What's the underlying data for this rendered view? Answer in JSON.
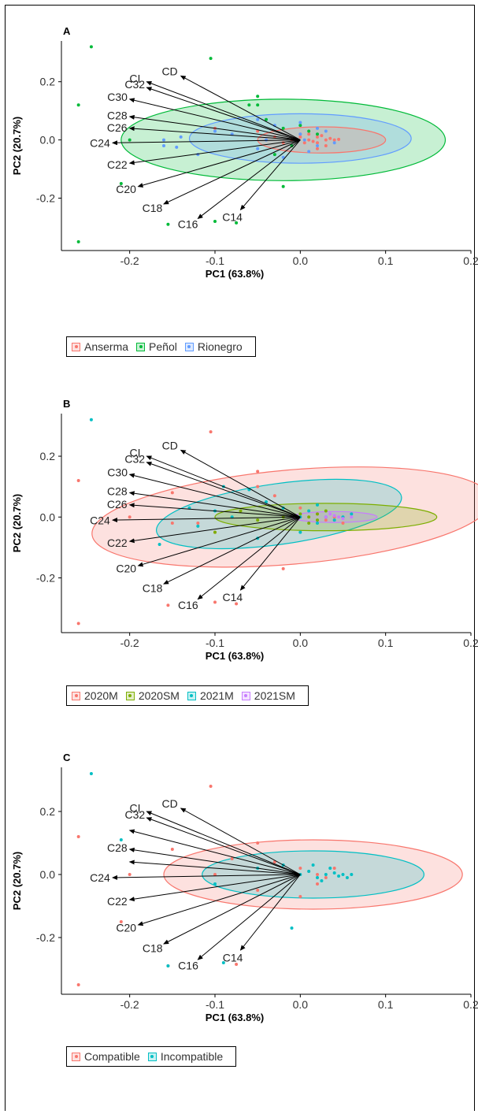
{
  "chart_data": [
    {
      "type": "scatter",
      "panel_label": "A",
      "xlabel": "PC1 (63.8%)",
      "ylabel": "PC2 (20.7%)",
      "xlim": [
        -0.28,
        0.2
      ],
      "ylim": [
        -0.38,
        0.34
      ],
      "xticks": [
        -0.2,
        -0.1,
        0.0,
        0.1,
        0.2
      ],
      "xtick_labels": [
        "-0.2",
        "-0.1",
        "0.0",
        "0.1",
        "0.2"
      ],
      "yticks": [
        -0.2,
        0.0,
        0.2
      ],
      "ytick_labels": [
        "-0.2",
        "0.0",
        "0.2"
      ],
      "grid": false,
      "legend_position": "bottom",
      "series": [
        {
          "name": "Anserma",
          "color": "#F8766D",
          "ellipse": {
            "cx": 0.025,
            "cy": 0.0,
            "rx": 0.075,
            "ry": 0.045,
            "angle": 0
          },
          "points": [
            [
              0.0,
              0.01
            ],
            [
              0.01,
              0.0
            ],
            [
              0.02,
              0.01
            ],
            [
              0.03,
              0.0
            ],
            [
              0.04,
              0.0
            ],
            [
              0.02,
              -0.01
            ],
            [
              0.03,
              -0.02
            ],
            [
              0.01,
              0.02
            ],
            [
              0.035,
              0.005
            ],
            [
              0.005,
              -0.01
            ],
            [
              0.025,
              0.015
            ],
            [
              -0.01,
              0.0
            ],
            [
              -0.03,
              0.01
            ],
            [
              -0.05,
              0.03
            ],
            [
              -0.1,
              0.04
            ],
            [
              0.015,
              -0.005
            ],
            [
              0.045,
              0.002
            ],
            [
              -0.02,
              -0.01
            ],
            [
              0.0,
              0.02
            ],
            [
              0.02,
              -0.03
            ]
          ]
        },
        {
          "name": "Peñol",
          "color": "#00BA38",
          "ellipse": {
            "cx": -0.02,
            "cy": 0.0,
            "rx": 0.19,
            "ry": 0.14,
            "angle": 0
          },
          "points": [
            [
              -0.245,
              0.32
            ],
            [
              -0.26,
              0.12
            ],
            [
              -0.26,
              -0.35
            ],
            [
              -0.105,
              0.28
            ],
            [
              -0.155,
              -0.29
            ],
            [
              -0.1,
              -0.28
            ],
            [
              -0.075,
              -0.285
            ],
            [
              -0.2,
              0.0
            ],
            [
              -0.21,
              -0.15
            ],
            [
              -0.05,
              0.15
            ],
            [
              -0.05,
              0.12
            ],
            [
              -0.04,
              0.07
            ],
            [
              -0.02,
              0.04
            ],
            [
              0.0,
              0.05
            ],
            [
              0.01,
              0.03
            ],
            [
              -0.01,
              -0.02
            ],
            [
              -0.03,
              -0.05
            ],
            [
              -0.02,
              -0.16
            ],
            [
              -0.06,
              0.12
            ],
            [
              0.02,
              0.02
            ]
          ]
        },
        {
          "name": "Rionegro",
          "color": "#619CFF",
          "ellipse": {
            "cx": 0.0,
            "cy": 0.005,
            "rx": 0.13,
            "ry": 0.085,
            "angle": 0
          },
          "points": [
            [
              -0.16,
              -0.02
            ],
            [
              -0.16,
              0.0
            ],
            [
              -0.145,
              -0.025
            ],
            [
              -0.14,
              0.01
            ],
            [
              -0.1,
              0.03
            ],
            [
              -0.12,
              -0.05
            ],
            [
              -0.05,
              0.07
            ],
            [
              -0.05,
              -0.03
            ],
            [
              -0.03,
              0.05
            ],
            [
              0.0,
              0.06
            ],
            [
              0.0,
              0.02
            ],
            [
              0.02,
              -0.02
            ],
            [
              0.01,
              -0.04
            ],
            [
              0.03,
              0.03
            ],
            [
              -0.02,
              -0.06
            ],
            [
              -0.08,
              0.02
            ],
            [
              -0.04,
              0.0
            ],
            [
              0.02,
              0.04
            ],
            [
              0.04,
              -0.01
            ],
            [
              0.005,
              0.0
            ]
          ]
        }
      ],
      "arrows": [
        {
          "label": "CD",
          "x": -0.14,
          "y": 0.22
        },
        {
          "label": "CI",
          "x": -0.18,
          "y": 0.2
        },
        {
          "label": "C32",
          "x": -0.18,
          "y": 0.18
        },
        {
          "label": "C30",
          "x": -0.2,
          "y": 0.14
        },
        {
          "label": "C28",
          "x": -0.2,
          "y": 0.08
        },
        {
          "label": "C26",
          "x": -0.2,
          "y": 0.04
        },
        {
          "label": "C24",
          "x": -0.22,
          "y": -0.01
        },
        {
          "label": "C22",
          "x": -0.2,
          "y": -0.08
        },
        {
          "label": "C20",
          "x": -0.19,
          "y": -0.16
        },
        {
          "label": "C18",
          "x": -0.16,
          "y": -0.22
        },
        {
          "label": "C16",
          "x": -0.12,
          "y": -0.27
        },
        {
          "label": "C14",
          "x": -0.07,
          "y": -0.24
        }
      ],
      "arrow_origin": {
        "x": 0.0,
        "y": 0.0
      }
    },
    {
      "type": "scatter",
      "panel_label": "B",
      "xlabel": "PC1 (63.8%)",
      "ylabel": "PC2 (20.7%)",
      "xlim": [
        -0.28,
        0.2
      ],
      "ylim": [
        -0.38,
        0.34
      ],
      "xticks": [
        -0.2,
        -0.1,
        0.0,
        0.1,
        0.2
      ],
      "xtick_labels": [
        "-0.2",
        "-0.1",
        "0.0",
        "0.1",
        "0.2"
      ],
      "yticks": [
        -0.2,
        0.0,
        0.2
      ],
      "ytick_labels": [
        "-0.2",
        "0.0",
        "0.2"
      ],
      "grid": false,
      "legend_position": "bottom",
      "series": [
        {
          "name": "2020M",
          "color": "#F8766D",
          "ellipse": {
            "cx": -0.01,
            "cy": 0.0,
            "rx": 0.235,
            "ry": 0.155,
            "angle": -5
          },
          "points": [
            [
              -0.26,
              0.12
            ],
            [
              -0.26,
              -0.35
            ],
            [
              -0.105,
              0.28
            ],
            [
              -0.155,
              -0.29
            ],
            [
              -0.1,
              -0.28
            ],
            [
              -0.075,
              -0.285
            ],
            [
              -0.15,
              0.08
            ],
            [
              -0.2,
              0.0
            ],
            [
              -0.15,
              -0.02
            ],
            [
              -0.1,
              -0.05
            ],
            [
              -0.05,
              0.15
            ],
            [
              -0.05,
              0.1
            ],
            [
              -0.03,
              0.07
            ],
            [
              0.0,
              0.03
            ],
            [
              0.02,
              0.01
            ],
            [
              0.03,
              -0.01
            ],
            [
              0.04,
              0.0
            ],
            [
              0.05,
              -0.02
            ],
            [
              -0.02,
              -0.17
            ],
            [
              -0.12,
              -0.02
            ]
          ]
        },
        {
          "name": "2020SM",
          "color": "#7CAE00",
          "ellipse": {
            "cx": 0.03,
            "cy": 0.0,
            "rx": 0.13,
            "ry": 0.045,
            "angle": 0
          },
          "points": [
            [
              0.0,
              0.01
            ],
            [
              0.01,
              0.0
            ],
            [
              0.02,
              -0.01
            ],
            [
              0.03,
              0.02
            ],
            [
              0.02,
              0.01
            ],
            [
              -0.02,
              0.0
            ],
            [
              -0.05,
              -0.01
            ],
            [
              -0.1,
              -0.05
            ],
            [
              -0.07,
              0.02
            ],
            [
              0.01,
              -0.02
            ]
          ]
        },
        {
          "name": "2021M",
          "color": "#00BFC4",
          "ellipse": {
            "cx": -0.025,
            "cy": 0.01,
            "rx": 0.145,
            "ry": 0.1,
            "angle": -8
          },
          "points": [
            [
              -0.245,
              0.32
            ],
            [
              -0.165,
              -0.09
            ],
            [
              -0.13,
              0.03
            ],
            [
              -0.12,
              -0.03
            ],
            [
              -0.08,
              0.0
            ],
            [
              -0.04,
              0.05
            ],
            [
              -0.02,
              0.03
            ],
            [
              0.0,
              0.0
            ],
            [
              0.01,
              0.02
            ],
            [
              0.02,
              -0.02
            ],
            [
              0.03,
              0.0
            ],
            [
              0.04,
              -0.01
            ],
            [
              0.05,
              0.0
            ],
            [
              0.06,
              0.01
            ],
            [
              -0.1,
              0.02
            ],
            [
              -0.05,
              -0.07
            ],
            [
              0.0,
              -0.05
            ],
            [
              -0.09,
              0.1
            ],
            [
              -0.06,
              0.09
            ],
            [
              0.02,
              0.04
            ]
          ]
        },
        {
          "name": "2021SM",
          "color": "#C77CFF",
          "ellipse": {
            "cx": 0.04,
            "cy": 0.0,
            "rx": 0.05,
            "ry": 0.018,
            "angle": 0
          },
          "points": [
            [
              0.03,
              0.0
            ],
            [
              0.04,
              0.005
            ],
            [
              0.05,
              -0.005
            ],
            [
              0.045,
              0.0
            ],
            [
              0.035,
              0.01
            ],
            [
              0.06,
              0.0
            ]
          ]
        }
      ],
      "arrows": [
        {
          "label": "CD",
          "x": -0.14,
          "y": 0.22
        },
        {
          "label": "CI",
          "x": -0.18,
          "y": 0.2
        },
        {
          "label": "C32",
          "x": -0.18,
          "y": 0.18
        },
        {
          "label": "C30",
          "x": -0.2,
          "y": 0.14
        },
        {
          "label": "C28",
          "x": -0.2,
          "y": 0.08
        },
        {
          "label": "C26",
          "x": -0.2,
          "y": 0.04
        },
        {
          "label": "C24",
          "x": -0.22,
          "y": -0.01
        },
        {
          "label": "C22",
          "x": -0.2,
          "y": -0.08
        },
        {
          "label": "C20",
          "x": -0.19,
          "y": -0.16
        },
        {
          "label": "C18",
          "x": -0.16,
          "y": -0.22
        },
        {
          "label": "C16",
          "x": -0.12,
          "y": -0.27
        },
        {
          "label": "C14",
          "x": -0.07,
          "y": -0.24
        }
      ],
      "arrow_origin": {
        "x": 0.0,
        "y": 0.0
      }
    },
    {
      "type": "scatter",
      "panel_label": "C",
      "xlabel": "PC1 (63.8%)",
      "ylabel": "PC2 (20.7%)",
      "xlim": [
        -0.28,
        0.2
      ],
      "ylim": [
        -0.38,
        0.34
      ],
      "xticks": [
        -0.2,
        -0.1,
        0.0,
        0.1,
        0.2
      ],
      "xtick_labels": [
        "-0.2",
        "-0.1",
        "0.0",
        "0.1",
        "0.2"
      ],
      "yticks": [
        -0.2,
        0.0,
        0.2
      ],
      "ytick_labels": [
        "-0.2",
        "0.0",
        "0.2"
      ],
      "grid": false,
      "legend_position": "bottom",
      "series": [
        {
          "name": "Compatible",
          "color": "#F8766D",
          "ellipse": {
            "cx": 0.015,
            "cy": 0.0,
            "rx": 0.175,
            "ry": 0.11,
            "angle": 0
          },
          "points": [
            [
              -0.26,
              0.12
            ],
            [
              -0.26,
              -0.35
            ],
            [
              -0.105,
              0.28
            ],
            [
              -0.155,
              -0.29
            ],
            [
              -0.075,
              -0.285
            ],
            [
              -0.21,
              -0.15
            ],
            [
              -0.2,
              0.0
            ],
            [
              -0.15,
              0.08
            ],
            [
              -0.05,
              0.1
            ],
            [
              -0.03,
              0.04
            ],
            [
              0.0,
              0.02
            ],
            [
              0.01,
              0.01
            ],
            [
              0.02,
              0.0
            ],
            [
              0.03,
              -0.01
            ],
            [
              -0.1,
              0.0
            ],
            [
              -0.05,
              -0.05
            ],
            [
              0.02,
              -0.03
            ],
            [
              0.0,
              -0.07
            ],
            [
              -0.08,
              0.05
            ],
            [
              0.04,
              0.02
            ]
          ]
        },
        {
          "name": "Incompatible",
          "color": "#00BFC4",
          "ellipse": {
            "cx": 0.015,
            "cy": 0.0,
            "rx": 0.13,
            "ry": 0.075,
            "angle": 0
          },
          "points": [
            [
              -0.245,
              0.32
            ],
            [
              -0.21,
              0.11
            ],
            [
              -0.155,
              -0.29
            ],
            [
              -0.09,
              -0.28
            ],
            [
              -0.01,
              -0.17
            ],
            [
              0.0,
              0.0
            ],
            [
              0.01,
              0.01
            ],
            [
              0.02,
              -0.01
            ],
            [
              0.03,
              0.0
            ],
            [
              0.04,
              0.005
            ],
            [
              0.05,
              0.0
            ],
            [
              0.055,
              -0.01
            ],
            [
              0.06,
              0.0
            ],
            [
              0.035,
              0.02
            ],
            [
              0.025,
              -0.02
            ],
            [
              -0.02,
              0.03
            ],
            [
              -0.05,
              0.02
            ],
            [
              -0.1,
              -0.03
            ],
            [
              0.015,
              0.03
            ],
            [
              0.045,
              -0.005
            ]
          ]
        }
      ],
      "arrows": [
        {
          "label": "CD",
          "x": -0.14,
          "y": 0.21
        },
        {
          "label": "CI",
          "x": -0.18,
          "y": 0.2
        },
        {
          "label": "C32",
          "x": -0.18,
          "y": 0.18
        },
        {
          "label": "",
          "x": -0.2,
          "y": 0.14
        },
        {
          "label": "C28",
          "x": -0.2,
          "y": 0.08
        },
        {
          "label": "",
          "x": -0.2,
          "y": 0.04
        },
        {
          "label": "C24",
          "x": -0.22,
          "y": -0.01
        },
        {
          "label": "C22",
          "x": -0.2,
          "y": -0.08
        },
        {
          "label": "C20",
          "x": -0.19,
          "y": -0.16
        },
        {
          "label": "C18",
          "x": -0.16,
          "y": -0.22
        },
        {
          "label": "C16",
          "x": -0.12,
          "y": -0.27
        },
        {
          "label": "C14",
          "x": -0.07,
          "y": -0.24
        }
      ],
      "arrow_origin": {
        "x": 0.0,
        "y": 0.0
      }
    }
  ]
}
